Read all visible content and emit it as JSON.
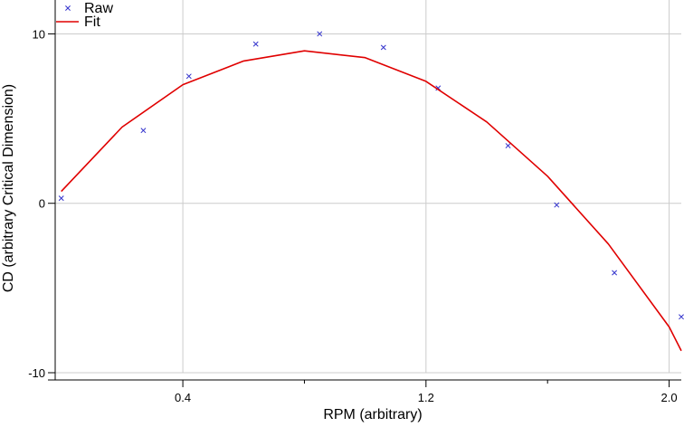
{
  "chart_data": {
    "type": "scatter",
    "title": "",
    "xlabel": "RPM (arbitrary)",
    "ylabel": "CD (arbitrary Critical Dimension)",
    "xlim": [
      -0.02,
      2.04
    ],
    "ylim": [
      -10.0,
      12.0
    ],
    "x_ticks": [
      {
        "value": 0.4,
        "label": "0.4"
      },
      {
        "value": 1.2,
        "label": "1.2"
      },
      {
        "value": 2.0,
        "label": "2.0"
      }
    ],
    "x_minor_ticks": [
      0.8,
      1.6
    ],
    "y_ticks": [
      {
        "value": 10,
        "label": "10"
      },
      {
        "value": 0,
        "label": "0"
      },
      {
        "value": -10,
        "label": "-10"
      }
    ],
    "grid": true,
    "legend_position": "top-left",
    "series": [
      {
        "name": "Raw",
        "kind": "markers",
        "marker": "x",
        "color": "#3333cc",
        "x": [
          0.0,
          0.27,
          0.42,
          0.64,
          0.85,
          1.06,
          1.24,
          1.47,
          1.63,
          1.82,
          2.04
        ],
        "y": [
          0.3,
          4.3,
          7.5,
          9.4,
          10.0,
          9.2,
          6.8,
          3.4,
          -0.1,
          -4.1,
          -6.7
        ]
      },
      {
        "name": "Fit",
        "kind": "line",
        "color": "#e00000",
        "x": [
          0.0,
          0.2,
          0.4,
          0.6,
          0.8,
          1.0,
          1.2,
          1.4,
          1.6,
          1.8,
          2.0,
          2.04
        ],
        "y": [
          0.7,
          4.5,
          7.0,
          8.4,
          9.0,
          8.6,
          7.2,
          4.8,
          1.6,
          -2.4,
          -7.3,
          -8.7
        ]
      }
    ]
  }
}
